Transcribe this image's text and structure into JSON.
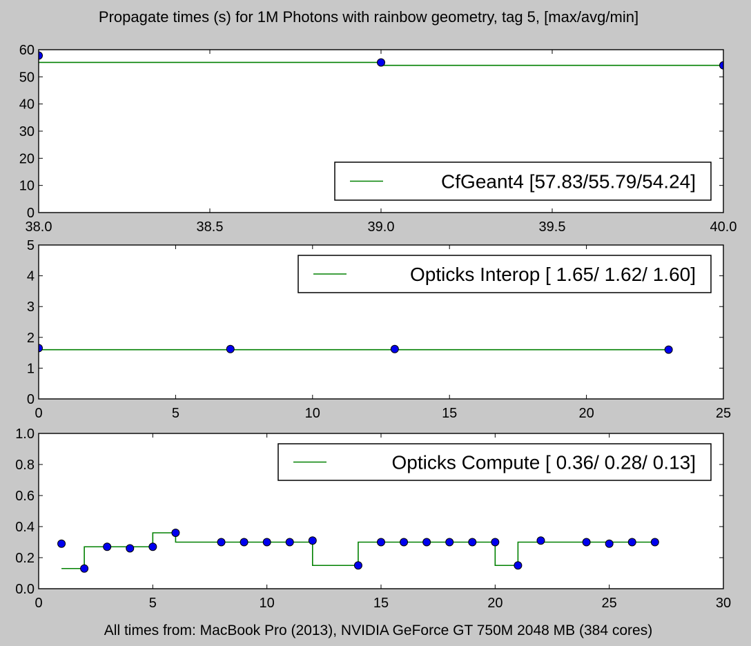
{
  "title": "Propagate times (s) for 1M Photons with rainbow geometry, tag 5, [max/avg/min]",
  "footer": "All times from: MacBook Pro (2013), NVIDIA GeForce GT 750M 2048 MB (384 cores)",
  "colors": {
    "line": "#008000",
    "marker": "#0000ee",
    "marker_edge": "#000000",
    "background": "#c8c8c8",
    "axes_bg": "#ffffff"
  },
  "chart_data": [
    {
      "type": "line",
      "step": true,
      "xlim": [
        38.0,
        40.0
      ],
      "ylim": [
        0,
        60
      ],
      "xticks": [
        38.0,
        38.5,
        39.0,
        39.5,
        40.0
      ],
      "xtick_labels": [
        "38.0",
        "38.5",
        "39.0",
        "39.5",
        "40.0"
      ],
      "yticks": [
        0,
        10,
        20,
        30,
        40,
        50,
        60
      ],
      "ytick_labels": [
        "0",
        "10",
        "20",
        "30",
        "40",
        "50",
        "60"
      ],
      "legend": {
        "label": "CfGeant4 [57.83/55.79/54.24]",
        "position": "lower-right"
      },
      "series": [
        {
          "name": "CfGeant4 [57.83/55.79/54.24]",
          "x": [
            38,
            39,
            40
          ],
          "y": [
            57.83,
            55.3,
            54.24
          ],
          "step_y": [
            55.3,
            54.24,
            54.24
          ]
        }
      ]
    },
    {
      "type": "line",
      "step": true,
      "xlim": [
        0,
        25
      ],
      "ylim": [
        0,
        5
      ],
      "xticks": [
        0,
        5,
        10,
        15,
        20,
        25
      ],
      "xtick_labels": [
        "0",
        "5",
        "10",
        "15",
        "20",
        "25"
      ],
      "yticks": [
        0,
        1,
        2,
        3,
        4,
        5
      ],
      "ytick_labels": [
        "0",
        "1",
        "2",
        "3",
        "4",
        "5"
      ],
      "legend": {
        "label": "Opticks Interop [ 1.65/ 1.62/ 1.60]",
        "position": "upper-right"
      },
      "series": [
        {
          "name": "Opticks Interop [ 1.65/ 1.62/ 1.60]",
          "x": [
            0,
            7,
            13,
            23
          ],
          "y": [
            1.65,
            1.62,
            1.62,
            1.6
          ],
          "step_y": [
            1.6,
            1.6,
            1.6,
            1.6
          ]
        }
      ]
    },
    {
      "type": "line",
      "step": true,
      "xlim": [
        0,
        30
      ],
      "ylim": [
        0.0,
        1.0
      ],
      "xticks": [
        0,
        5,
        10,
        15,
        20,
        25,
        30
      ],
      "xtick_labels": [
        "0",
        "5",
        "10",
        "15",
        "20",
        "25",
        "30"
      ],
      "yticks": [
        0.0,
        0.2,
        0.4,
        0.6,
        0.8,
        1.0
      ],
      "ytick_labels": [
        "0.0",
        "0.2",
        "0.4",
        "0.6",
        "0.8",
        "1.0"
      ],
      "legend": {
        "label": "Opticks Compute [ 0.36/ 0.28/ 0.13]",
        "position": "upper-right"
      },
      "series": [
        {
          "name": "Opticks Compute [ 0.36/ 0.28/ 0.13]",
          "x": [
            1,
            2,
            3,
            4,
            5,
            6,
            8,
            9,
            10,
            11,
            12,
            14,
            15,
            16,
            17,
            18,
            19,
            20,
            21,
            22,
            24,
            25,
            26,
            27
          ],
          "y": [
            0.29,
            0.13,
            0.27,
            0.26,
            0.27,
            0.36,
            0.3,
            0.3,
            0.3,
            0.3,
            0.31,
            0.15,
            0.3,
            0.3,
            0.3,
            0.3,
            0.3,
            0.3,
            0.15,
            0.31,
            0.3,
            0.29,
            0.3,
            0.3
          ],
          "step_y": [
            0.13,
            0.27,
            0.27,
            0.27,
            0.36,
            0.3,
            0.3,
            0.3,
            0.3,
            0.3,
            0.15,
            0.3,
            0.3,
            0.3,
            0.3,
            0.3,
            0.3,
            0.15,
            0.3,
            0.3,
            0.3,
            0.3,
            0.3,
            0.3
          ]
        }
      ]
    }
  ]
}
